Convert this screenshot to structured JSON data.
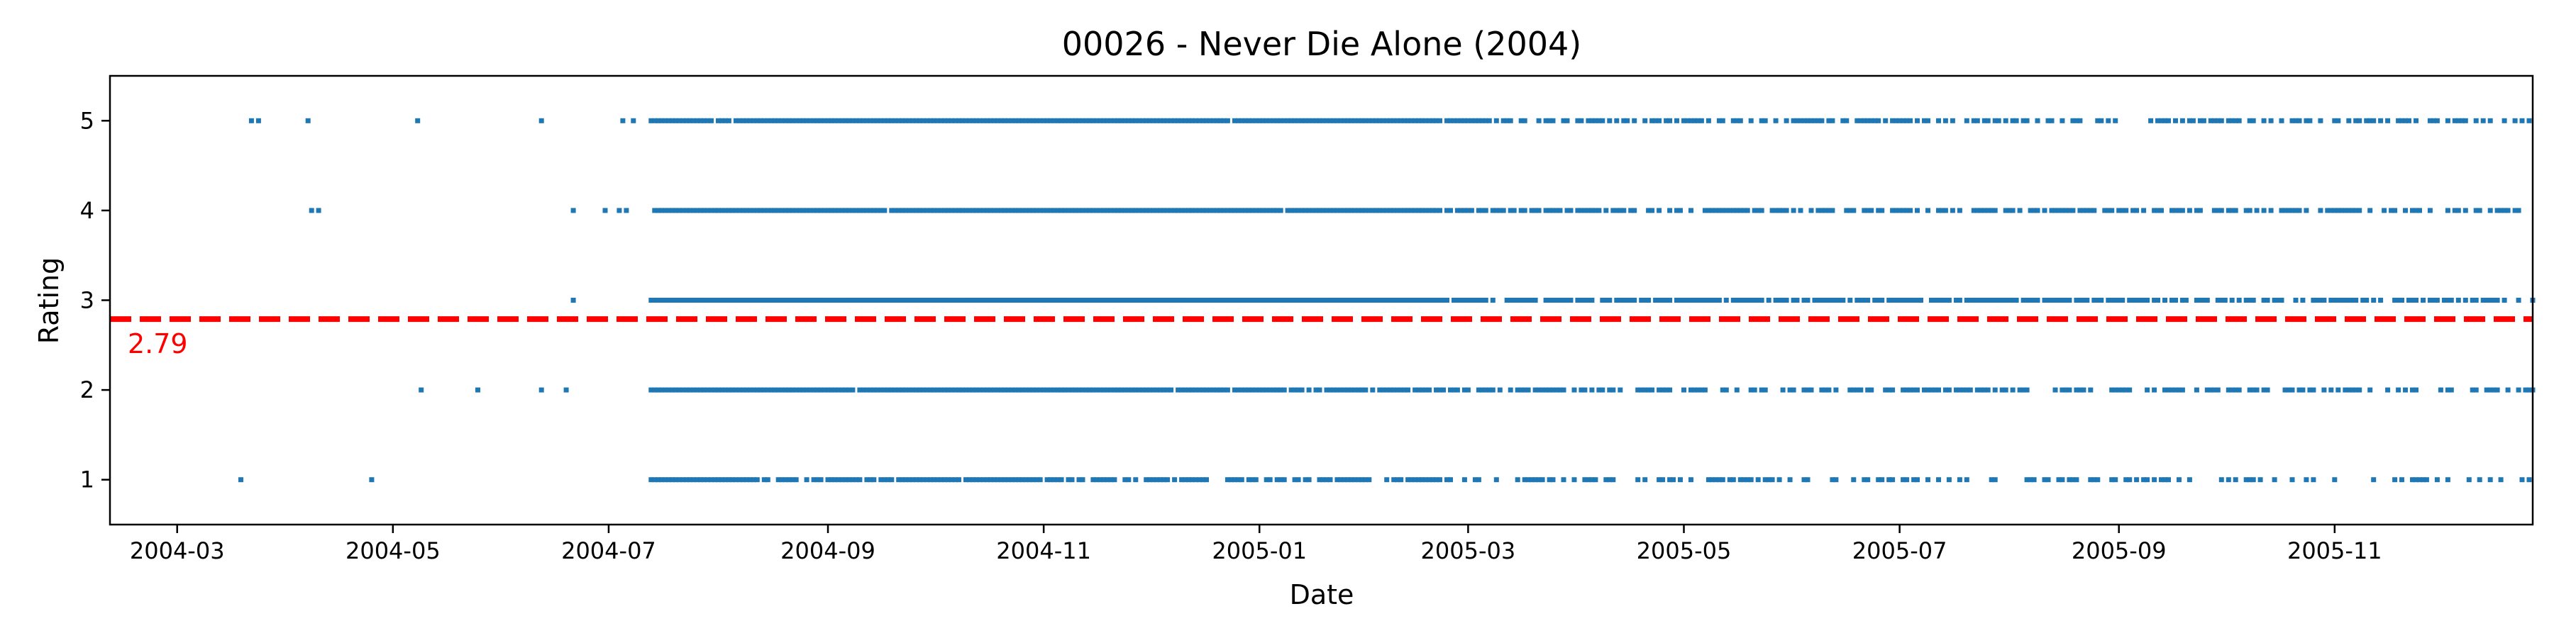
{
  "chart_data": {
    "type": "scatter",
    "title": "00026 - Never Die Alone (2004)",
    "xlabel": "Date",
    "ylabel": "Rating",
    "xlim": [
      "2004-02-11",
      "2005-12-27"
    ],
    "ylim": [
      0.5,
      5.5
    ],
    "xticks": [
      "2004-03",
      "2004-05",
      "2004-07",
      "2004-09",
      "2004-11",
      "2005-01",
      "2005-03",
      "2005-05",
      "2005-07",
      "2005-09",
      "2005-11"
    ],
    "yticks": [
      "1",
      "2",
      "3",
      "4",
      "5"
    ],
    "grid": false,
    "legend": "none",
    "marker_color": "#1f77b4",
    "series": [
      {
        "ratings": [
          1,
          2,
          3,
          4,
          5
        ],
        "dense_range": {
          "start": "2004-07-13",
          "end": "2005-12-27"
        },
        "early_points": [
          {
            "x": "2004-03-19",
            "y": 1
          },
          {
            "x": "2004-04-25",
            "y": 1
          },
          {
            "x": "2004-05-09",
            "y": 2
          },
          {
            "x": "2004-05-25",
            "y": 2
          },
          {
            "x": "2004-06-12",
            "y": 2
          },
          {
            "x": "2004-06-19",
            "y": 2
          },
          {
            "x": "2004-06-21",
            "y": 3
          },
          {
            "x": "2004-04-08",
            "y": 4
          },
          {
            "x": "2004-04-10",
            "y": 4
          },
          {
            "x": "2004-06-21",
            "y": 4
          },
          {
            "x": "2004-06-30",
            "y": 4
          },
          {
            "x": "2004-07-04",
            "y": 4
          },
          {
            "x": "2004-07-06",
            "y": 4
          },
          {
            "x": "2004-03-22",
            "y": 5
          },
          {
            "x": "2004-03-24",
            "y": 5
          },
          {
            "x": "2004-04-07",
            "y": 5
          },
          {
            "x": "2004-05-08",
            "y": 5
          },
          {
            "x": "2004-06-12",
            "y": 5
          },
          {
            "x": "2004-07-05",
            "y": 5
          },
          {
            "x": "2004-07-08",
            "y": 5
          }
        ]
      }
    ],
    "mean_line": {
      "value": 2.79,
      "label": "2.79",
      "color": "#ff0000",
      "style": "dashed"
    }
  }
}
